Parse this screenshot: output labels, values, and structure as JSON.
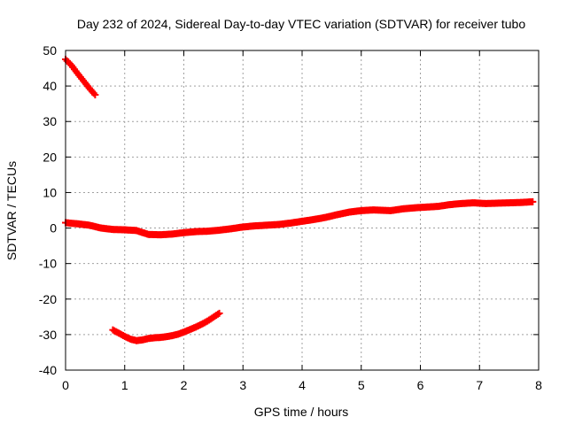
{
  "chart_data": {
    "type": "scatter",
    "title": "Day 232 of 2024, Sidereal Day-to-day VTEC variation (SDTVAR) for receiver tubo",
    "xlabel": "GPS time / hours",
    "ylabel": "SDTVAR / TECUs",
    "xlim": [
      0,
      8
    ],
    "ylim": [
      -40,
      50
    ],
    "xticks": [
      "0",
      "1",
      "2",
      "3",
      "4",
      "5",
      "6",
      "7",
      "8"
    ],
    "yticks": [
      "50",
      "40",
      "30",
      "20",
      "10",
      "0",
      "-10",
      "-20",
      "-30",
      "-40"
    ],
    "grid": true,
    "marker": "plus",
    "color": "#ff0000",
    "series": [
      {
        "points": [
          [
            0.0,
            47.5
          ],
          [
            0.1,
            45.8
          ],
          [
            0.2,
            43.6
          ],
          [
            0.3,
            41.5
          ],
          [
            0.4,
            39.4
          ],
          [
            0.5,
            37.5
          ]
        ]
      },
      {
        "points": [
          [
            0.0,
            1.5
          ],
          [
            0.2,
            1.2
          ],
          [
            0.4,
            0.8
          ],
          [
            0.6,
            0.0
          ],
          [
            0.8,
            -0.4
          ],
          [
            1.0,
            -0.5
          ],
          [
            1.2,
            -0.7
          ],
          [
            1.4,
            -1.8
          ],
          [
            1.6,
            -1.9
          ],
          [
            1.8,
            -1.7
          ],
          [
            2.0,
            -1.3
          ],
          [
            2.2,
            -1.0
          ],
          [
            2.4,
            -0.9
          ],
          [
            2.6,
            -0.6
          ],
          [
            2.8,
            -0.2
          ],
          [
            3.0,
            0.3
          ],
          [
            3.2,
            0.6
          ],
          [
            3.4,
            0.8
          ],
          [
            3.6,
            1.0
          ],
          [
            3.8,
            1.4
          ],
          [
            4.0,
            1.9
          ],
          [
            4.2,
            2.4
          ],
          [
            4.4,
            3.0
          ],
          [
            4.6,
            3.8
          ],
          [
            4.8,
            4.5
          ],
          [
            5.0,
            4.9
          ],
          [
            5.2,
            5.1
          ],
          [
            5.5,
            4.9
          ],
          [
            5.7,
            5.4
          ],
          [
            5.9,
            5.7
          ],
          [
            6.1,
            5.9
          ],
          [
            6.3,
            6.1
          ],
          [
            6.5,
            6.6
          ],
          [
            6.7,
            6.9
          ],
          [
            6.9,
            7.1
          ],
          [
            7.1,
            6.9
          ],
          [
            7.3,
            7.0
          ],
          [
            7.5,
            7.1
          ],
          [
            7.7,
            7.2
          ],
          [
            7.9,
            7.4
          ]
        ]
      },
      {
        "points": [
          [
            0.8,
            -28.7
          ],
          [
            0.9,
            -29.6
          ],
          [
            1.0,
            -30.5
          ],
          [
            1.1,
            -31.3
          ],
          [
            1.2,
            -31.7
          ],
          [
            1.3,
            -31.5
          ],
          [
            1.4,
            -31.1
          ],
          [
            1.5,
            -30.9
          ],
          [
            1.6,
            -30.8
          ],
          [
            1.7,
            -30.6
          ],
          [
            1.8,
            -30.3
          ],
          [
            1.9,
            -29.9
          ],
          [
            2.0,
            -29.3
          ],
          [
            2.1,
            -28.6
          ],
          [
            2.2,
            -27.9
          ],
          [
            2.3,
            -27.1
          ],
          [
            2.4,
            -26.2
          ],
          [
            2.5,
            -25.1
          ],
          [
            2.6,
            -24.0
          ]
        ]
      }
    ]
  }
}
